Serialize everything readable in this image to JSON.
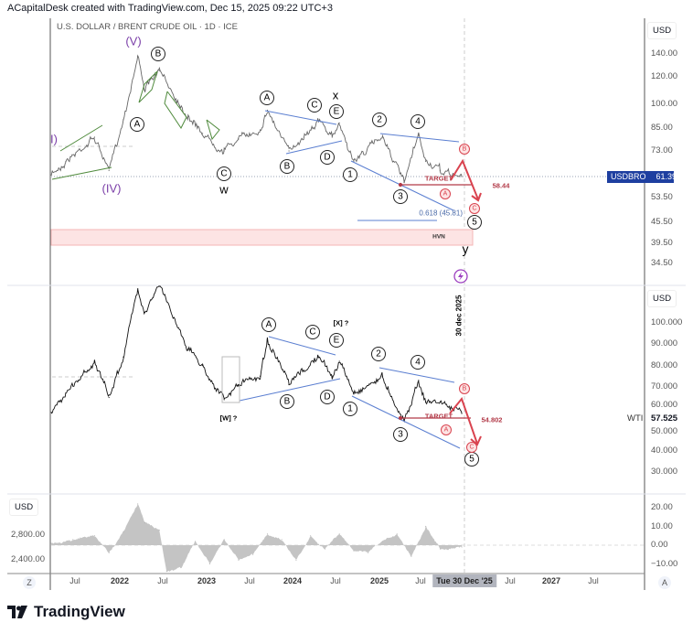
{
  "credit": "ACapitalDesk created with TradingView.com, Dec 15, 2025 09:22 UTC+3",
  "symbol": "U.S. DOLLAR / BRENT CRUDE OIL · 1D · ICE",
  "currency": "USD",
  "logo": "TradingView",
  "colors": {
    "wave_purple": "#7b3fa8",
    "channel_blue": "#5b7fd1",
    "target_red": "#d9434f",
    "label_blue": "#1e3fa0",
    "hvn_fill": "#fde4e4"
  },
  "top_axis": {
    "ticks": [
      "140.00",
      "120.00",
      "100.00",
      "85.00",
      "73.00",
      "53.50",
      "45.50",
      "39.50",
      "34.50"
    ],
    "last_label": "USDBRO",
    "last_value": "61.39"
  },
  "mid_axis": {
    "ticks": [
      "100.000",
      "90.000",
      "80.000",
      "70.000",
      "60.000",
      "50.000",
      "40.000",
      "30.000"
    ],
    "last_label": "WTI",
    "last_value": "57.525"
  },
  "osc_axis": {
    "right_ticks": [
      "20.00",
      "10.00",
      "0.00",
      "−10.00"
    ],
    "left_ticks": [
      "2,800.00",
      "2,400.00"
    ]
  },
  "time_axis": {
    "labels": [
      "Jul",
      "2022",
      "Jul",
      "2023",
      "Jul",
      "2024",
      "Jul",
      "2025",
      "Jul",
      "Tue 30 Dec '25",
      "Jul",
      "2027",
      "Jul"
    ],
    "reset_button": "Z",
    "auto_button": "A"
  },
  "annotations": {
    "top": [
      "(V)",
      "B",
      "A",
      "(IV)",
      "I)",
      "C",
      "w",
      "A",
      "C",
      "x",
      "E",
      "B",
      "D",
      "1",
      "2",
      "4",
      "3",
      "5",
      "y",
      "B",
      "A",
      "C",
      "TARGET",
      "58.44",
      "0.618 (45.81)",
      "HVN"
    ],
    "mid": [
      "A",
      "C",
      "[X] ?",
      "E",
      "B",
      "D",
      "1",
      "[W] ?",
      "2",
      "4",
      "3",
      "5",
      "B",
      "A",
      "C",
      "TARGET",
      "54.802",
      "30 dec 2025"
    ]
  },
  "chart_data": [
    {
      "type": "line",
      "title": "U.S. DOLLAR / BRENT CRUDE OIL · 1D · ICE",
      "scale": "log",
      "ylabel": "USD",
      "ylim": [
        33,
        150
      ],
      "x": [
        "2021-03",
        "2021-05",
        "2021-09",
        "2021-11",
        "2022-01",
        "2022-03",
        "2022-04",
        "2022-06",
        "2022-10",
        "2022-12",
        "2023-03",
        "2023-05",
        "2023-08",
        "2023-09",
        "2023-12",
        "2024-04",
        "2024-06",
        "2024-07",
        "2024-09",
        "2025-01",
        "2025-04",
        "2025-06",
        "2025-07",
        "2025-09",
        "2025-12"
      ],
      "series": [
        {
          "name": "USDBRO",
          "values": [
            62,
            68,
            80,
            64,
            90,
            138,
            110,
            125,
            92,
            82,
            73,
            79,
            84,
            96,
            73,
            90,
            80,
            88,
            68,
            81,
            59,
            81,
            68,
            64,
            61.39
          ]
        }
      ],
      "targets": {
        "target": 58.44,
        "fib_0_618": 45.81
      }
    },
    {
      "type": "line",
      "ylabel": "USD",
      "ylim": [
        25,
        110
      ],
      "x": [
        "2021-03",
        "2021-05",
        "2021-09",
        "2021-11",
        "2022-01",
        "2022-03",
        "2022-04",
        "2022-06",
        "2022-10",
        "2022-12",
        "2023-03",
        "2023-05",
        "2023-08",
        "2023-09",
        "2023-12",
        "2024-04",
        "2024-06",
        "2024-07",
        "2024-09",
        "2025-01",
        "2025-04",
        "2025-06",
        "2025-07",
        "2025-09",
        "2025-12"
      ],
      "series": [
        {
          "name": "WTI",
          "values": [
            58,
            67,
            82,
            65,
            84,
            116,
            105,
            118,
            88,
            80,
            64,
            71,
            75,
            92,
            71,
            84,
            75,
            82,
            67,
            75,
            54,
            73,
            63,
            63,
            57.525
          ]
        }
      ],
      "targets": {
        "target": 54.802
      }
    },
    {
      "type": "area",
      "ylabel": "USD",
      "ylim": [
        -15,
        25
      ],
      "x": [
        "2021-03",
        "2021-06",
        "2021-09",
        "2021-11",
        "2022-01",
        "2022-03",
        "2022-04",
        "2022-06",
        "2022-07",
        "2022-09",
        "2022-11",
        "2023-01",
        "2023-03",
        "2023-05",
        "2023-07",
        "2023-09",
        "2023-11",
        "2024-01",
        "2024-03",
        "2024-05",
        "2024-07",
        "2024-09",
        "2024-11",
        "2025-01",
        "2025-03",
        "2025-05",
        "2025-07",
        "2025-09",
        "2025-12"
      ],
      "series": [
        {
          "values": [
            1,
            3,
            5,
            -4,
            7,
            22,
            12,
            8,
            -14,
            -12,
            2,
            -10,
            3,
            -8,
            -5,
            6,
            3,
            -8,
            5,
            -2,
            6,
            -3,
            -4,
            2,
            6,
            -6,
            10,
            -2,
            -1
          ]
        }
      ]
    }
  ]
}
